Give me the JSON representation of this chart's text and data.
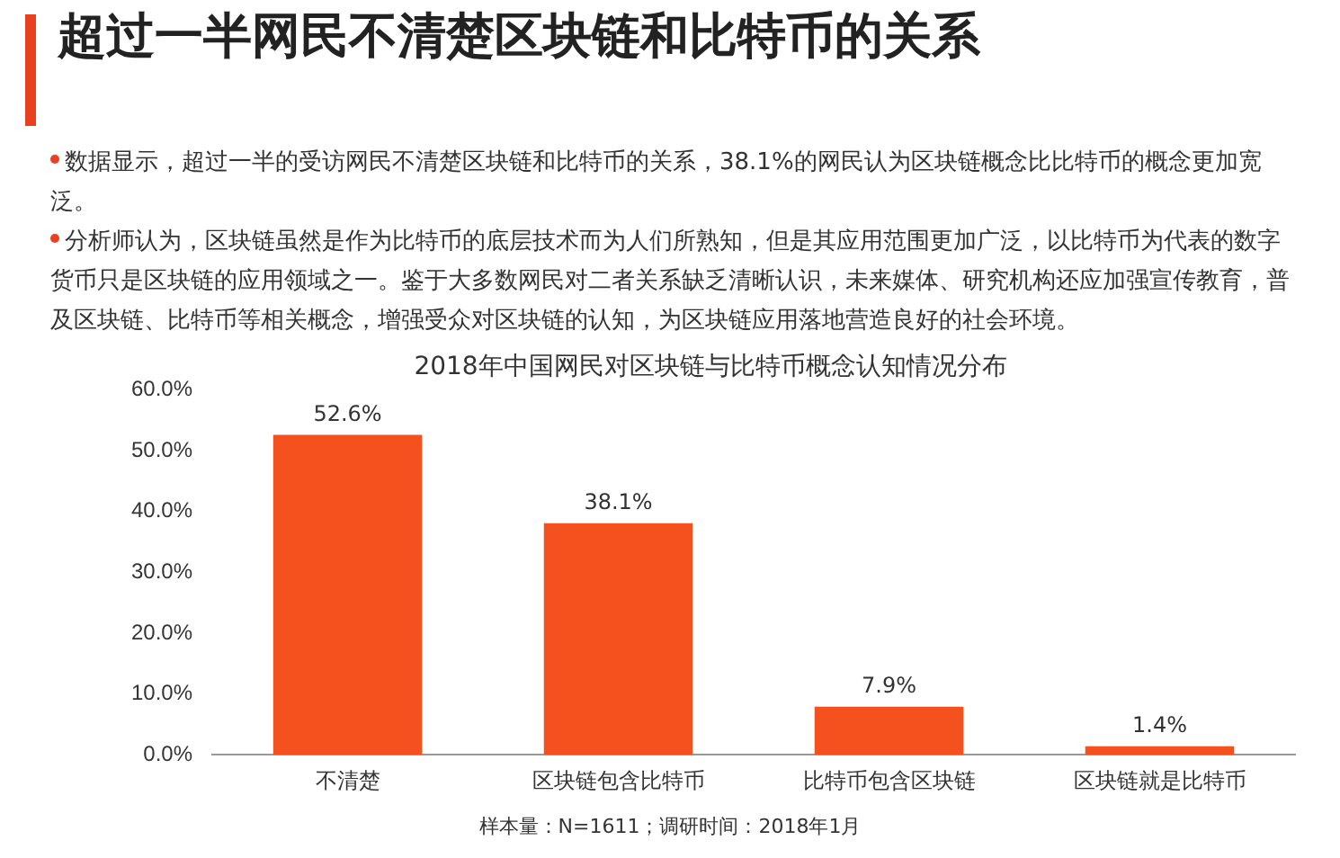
{
  "chart_data": {
    "type": "bar",
    "title": "2018年中国网民对区块链与比特币概念认知情况分布",
    "categories": [
      "不清楚",
      "区块链包含比特币",
      "比特币包含区块链",
      "区块链就是比特币"
    ],
    "values": [
      52.6,
      38.1,
      7.9,
      1.4
    ],
    "value_labels": [
      "52.6%",
      "38.1%",
      "7.9%",
      "1.4%"
    ],
    "color": "#f4511e",
    "ylim": [
      0,
      60
    ],
    "yticks": [
      {
        "value": 0,
        "label": "0.0%"
      },
      {
        "value": 10,
        "label": "10.0%"
      },
      {
        "value": 20,
        "label": "20.0%"
      },
      {
        "value": 30,
        "label": "30.0%"
      },
      {
        "value": 40,
        "label": "40.0%"
      },
      {
        "value": 50,
        "label": "50.0%"
      },
      {
        "value": 60,
        "label": "60.0%"
      }
    ],
    "grid": false,
    "legend": false,
    "annotations": [
      "超过一半网民不清楚区块链和比特币的关系",
      "数据显示，超过一半的受访网民不清楚区块链和比特币的关系，38.1%的网民认为区块链概念比比特币的概念更加宽泛。",
      "分析师认为，区块链虽然是作为比特币的底层技术而为人们所熟知，但是其应用范围更加广泛，以比特币为代表的数字货币只是区块链的应用领域之一。鉴于大多数网民对二者关系缺乏清晰认识，未来媒体、研究机构还应加强宣传教育，普及区块链、比特币等相关概念，增强受众对区块链的认知，为区块链应用落地营造良好的社会环境。",
      "样本量：N=1611；调研时间：2018年1月"
    ]
  }
}
